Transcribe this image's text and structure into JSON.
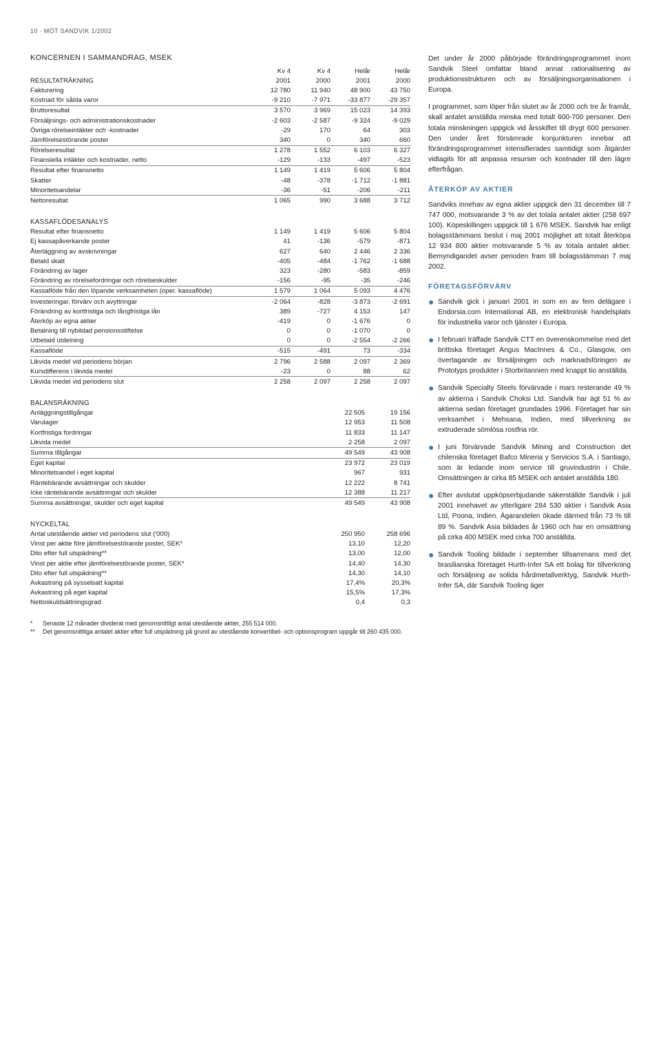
{
  "pageHeader": "10 · MÖT SANDVIK 1/2002",
  "leftBlocks": [
    {
      "title": "KONCERNEN I SAMMANDRAG, MSEK",
      "cols": 4,
      "headers": [
        "",
        "Kv 4",
        "Kv 4",
        "Helår",
        "Helår"
      ],
      "subheaders": [
        "RESULTATRÄKNING",
        "2001",
        "2000",
        "2001",
        "2000"
      ],
      "rows": [
        {
          "c": [
            "Fakturering",
            "12 780",
            "11 940",
            "48 900",
            "43 750"
          ]
        },
        {
          "c": [
            "Kostnad för sålda varor",
            "-9 210",
            "-7 971",
            "-33 877",
            "-29 357"
          ],
          "line": true
        },
        {
          "c": [
            "Bruttoresultat",
            "3 570",
            "3 969",
            "15 023",
            "14 393"
          ]
        },
        {
          "c": [
            "Försäljnings- och administrationskostnader",
            "-2 603",
            "-2 587",
            "-9 324",
            "-9 029"
          ]
        },
        {
          "c": [
            "Övriga rörelseintäkter och -kostnader",
            "-29",
            "170",
            "64",
            "303"
          ]
        },
        {
          "c": [
            "Jämförelsestörande poster",
            "340",
            "0",
            "340",
            "660"
          ],
          "line": true
        },
        {
          "c": [
            "Rörelseresultat",
            "1 278",
            "1 552",
            "6 103",
            "6 327"
          ]
        },
        {
          "c": [
            "Finansiella intäkter och kostnader, netto",
            "-129",
            "-133",
            "-497",
            "-523"
          ],
          "line": true
        },
        {
          "c": [
            "Resultat efter finansnetto",
            "1 149",
            "1 419",
            "5 606",
            "5 804"
          ]
        },
        {
          "c": [
            "Skatter",
            "-48",
            "-378",
            "-1 712",
            "-1 881"
          ]
        },
        {
          "c": [
            "Minoritetsandelar",
            "-36",
            "-51",
            "-206",
            "-211"
          ],
          "line": true
        },
        {
          "c": [
            "Nettoresultat",
            "1 065",
            "990",
            "3 688",
            "3 712"
          ]
        }
      ]
    },
    {
      "subhead": "KASSAFLÖDESANALYS",
      "cols": 4,
      "rows": [
        {
          "c": [
            "Resultat efter finansnetto",
            "1 149",
            "1 419",
            "5 606",
            "5 804"
          ]
        },
        {
          "c": [
            "Ej kassapåverkande poster",
            "41",
            "-136",
            "-579",
            "-871"
          ]
        },
        {
          "c": [
            "Återläggning av avskrivningar",
            "627",
            "640",
            "2 446",
            "2 336"
          ]
        },
        {
          "c": [
            "Betald skatt",
            "-405",
            "-484",
            "-1 762",
            "-1 688"
          ]
        },
        {
          "c": [
            "Förändring av lager",
            "323",
            "-280",
            "-583",
            "-859"
          ]
        },
        {
          "c": [
            "Förändring av rörelsefordringar och rörelseskulder",
            "-156",
            "-95",
            "-35",
            "-246"
          ],
          "line": true
        },
        {
          "c": [
            "Kassaflöde från den löpande verksamheten (oper. kassaflöde)",
            "1 579",
            "1 064",
            "5 093",
            "4 476"
          ],
          "line": true
        },
        {
          "c": [
            "Investeringar, förvärv och avyttringar",
            "-2 064",
            "-828",
            "-3 873",
            "-2 691"
          ]
        },
        {
          "c": [
            "Förändring av kortfristiga och långfristiga lån",
            "389",
            "-727",
            "4 153",
            "147"
          ]
        },
        {
          "c": [
            "Återköp av egna aktier",
            "-419",
            "0",
            "-1 676",
            "0"
          ]
        },
        {
          "c": [
            "Betalning till nybildad pensionsstiftelse",
            "0",
            "0",
            "-1 070",
            "0"
          ]
        },
        {
          "c": [
            "Utbetald utdelning",
            "0",
            "0",
            "-2 554",
            "-2 266"
          ],
          "line": true
        },
        {
          "c": [
            "Kassaflöde",
            "-515",
            "-491",
            "73",
            "-334"
          ],
          "line": true
        },
        {
          "c": [
            "Likvida medel vid periodens början",
            "2 796",
            "2 588",
            "2 097",
            "2 369"
          ]
        },
        {
          "c": [
            "Kursdifferens i likvida medel",
            "-23",
            "0",
            "88",
            "62"
          ],
          "line": true
        },
        {
          "c": [
            "Likvida medel vid periodens slut",
            "2 258",
            "2 097",
            "2 258",
            "2 097"
          ]
        }
      ]
    },
    {
      "subhead": "BALANSRÄKNING",
      "cols": 2,
      "rows": [
        {
          "c": [
            "Anläggningstillgångar",
            "22 505",
            "19 156"
          ]
        },
        {
          "c": [
            "Varulager",
            "12 953",
            "11 508"
          ]
        },
        {
          "c": [
            "Kortfristiga fordringar",
            "11 833",
            "11 147"
          ]
        },
        {
          "c": [
            "Likvida medel",
            "2 258",
            "2 097"
          ],
          "line": true
        },
        {
          "c": [
            "Summa tillgångar",
            "49 549",
            "43 908"
          ],
          "line": true
        },
        {
          "c": [
            "Eget kapital",
            "23 972",
            "23 019"
          ]
        },
        {
          "c": [
            "Minoritetsandel i eget kapital",
            "967",
            "931"
          ]
        },
        {
          "c": [
            "Räntebärande avsättningar och skulder",
            "12 222",
            "8 741"
          ]
        },
        {
          "c": [
            "Icke räntebärande avsättningar och skulder",
            "12 388",
            "11 217"
          ],
          "line": true
        },
        {
          "c": [
            "Summa avsättningar, skulder och eget kapital",
            "49 549",
            "43 908"
          ]
        }
      ]
    },
    {
      "subhead": "NYCKELTAL",
      "cols": 2,
      "rows": [
        {
          "c": [
            "Antal utestående aktier vid periodens slut ('000)",
            "250 950",
            "258 696"
          ]
        },
        {
          "c": [
            "Vinst per aktie före jämförelsestörande poster, SEK*",
            "13,10",
            "12,20"
          ]
        },
        {
          "c": [
            "Dito efter full utspädning**",
            "13,00",
            "12,00"
          ]
        },
        {
          "c": [
            "Vinst per aktie efter jämförelsestörande poster, SEK*",
            "14,40",
            "14,30"
          ]
        },
        {
          "c": [
            "Dito efter full utspädning**",
            "14,30",
            "14,10"
          ]
        },
        {
          "c": [
            "Avkastning på sysselsatt kapital",
            "17,4%",
            "20,3%"
          ]
        },
        {
          "c": [
            "Avkastning på eget kapital",
            "15,5%",
            "17,3%"
          ]
        },
        {
          "c": [
            "Nettoskuldsättningsgrad",
            "0,4",
            "0,3"
          ]
        }
      ]
    }
  ],
  "footnotes": [
    {
      "mark": "*",
      "text": "Senaste 12 månader dividerat med genomsnittligt antal utestående aktier, 255 514 000."
    },
    {
      "mark": "**",
      "text": "Det genomsnittliga antalet aktier efter full utspädning på grund av utestående konvertibel- och optionsprogram uppgår till 260 435 000."
    }
  ],
  "right": [
    {
      "type": "p",
      "text": "Det under år 2000 påbörjade förändringsprogrammet inom Sandvik Steel omfattar bland annat rationalisering av produktionsstrukturen och av försäljningsorganisationen i Europa."
    },
    {
      "type": "p",
      "text": "I programmet, som löper från slutet av år 2000 och tre år framåt, skall antalet anställda minska med totalt 600-700 personer. Den totala minskningen uppgick vid årsskiftet till drygt 600 personer. Den under året försämrade konjunkturen innebar att förändringsprogrammet intensifierades samtidigt som åtgärder vidtagits för att anpassa resurser och kostnader till den lägre efterfrågan."
    },
    {
      "type": "h3",
      "text": "ÅTERKÖP AV AKTIER"
    },
    {
      "type": "p",
      "text": "Sandviks innehav av egna aktier uppgick den 31 december till 7 747 000, motsvarande 3 % av det totala antalet aktier (258 697 100). Köpeskillingen uppgick till 1 676 MSEK. Sandvik har enligt bolagsstämmans beslut i maj 2001 möjlighet att totalt återköpa 12 934 800 aktier motsvarande 5 % av totala antalet aktier. Bemyndigandet avser perioden fram till bolagsstämman 7 maj 2002."
    },
    {
      "type": "h3",
      "text": "FÖRETAGSFÖRVÄRV"
    },
    {
      "type": "bullet",
      "text": "Sandvik gick i januari 2001 in som en av fem delägare i Endorsia.com International AB, en elektronisk handelsplats för industriella varor och tjänster i Europa."
    },
    {
      "type": "bullet",
      "text": "I februari träffade Sandvik CTT en överenskommelse med det brittiska företaget Angus MacInnes & Co., Glasgow, om övertagande av försäljningen och marknadsföringen av Prototyps produkter i Storbritannien med knappt tio anställda."
    },
    {
      "type": "bullet",
      "text": "Sandvik Specialty Steels förvärvade i mars resterande 49 % av aktierna i Sandvik Choksi Ltd. Sandvik har ägt 51 % av aktierna sedan företaget grundades 1996. Företaget har sin verksamhet i Mehsana, Indien, med tillverkning av extruderade sömlösa rostfria rör."
    },
    {
      "type": "bullet",
      "text": "I juni förvärvade Sandvik Mining and Construction det chilenska företaget Bafco Mineria y Servicios S.A. i Santiago, som är ledande inom service till gruvindustrin i Chile. Omsättningen är cirka 85 MSEK och antalet anställda 180."
    },
    {
      "type": "bullet",
      "text": "Efter avslutat uppköpserbjudande säkerställde Sandvik i juli 2001 innehavet av ytterligare 284 530 aktier i Sandvik Asia Ltd, Poona, Indien. Ägarandelen ökade därmed från 73 % till 89 %. Sandvik Asia bildades år 1960 och har en omsättning på cirka 400 MSEK med cirka 700 anställda."
    },
    {
      "type": "bullet",
      "text": "Sandvik Tooling bildade i september tillsammans med det brasilianska företaget Hurth-Infer SA ett bolag för tillverkning och försäljning av solida hårdmetallverktyg, Sandvik Hurth-Infer SA, där Sandvik Tooling äger"
    }
  ]
}
